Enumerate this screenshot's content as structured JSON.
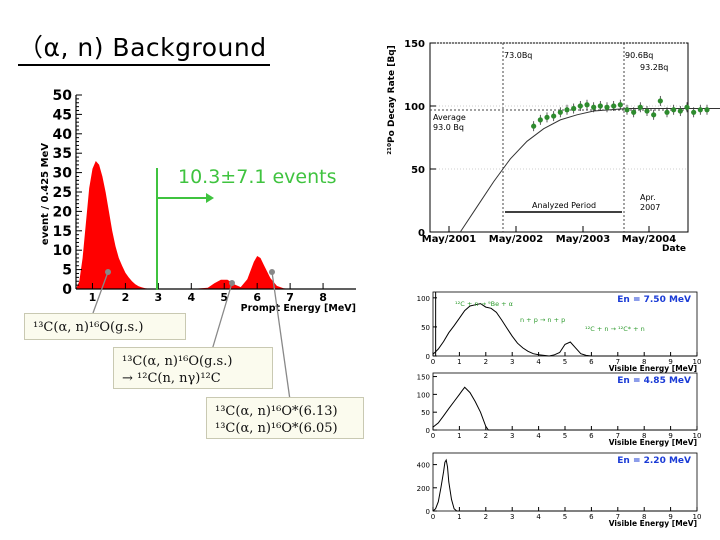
{
  "slide": {
    "title": "（α, n) Background"
  },
  "chart_data": [
    {
      "type": "area",
      "name": "alpha_n_spectrum",
      "xlabel": "Prompt Energy [MeV]",
      "ylabel": "event / 0.425 MeV",
      "xlim": [
        0.5,
        9
      ],
      "ylim": [
        0,
        50
      ],
      "xticks": [
        "1",
        "2",
        "3",
        "4",
        "5",
        "6",
        "7",
        "8"
      ],
      "yticks": [
        "0",
        "5",
        "10",
        "15",
        "20",
        "25",
        "30",
        "35",
        "40",
        "45",
        "50"
      ],
      "fill_color": "#ff0000",
      "x": [
        0.5,
        0.6,
        0.7,
        0.8,
        0.9,
        1.0,
        1.1,
        1.2,
        1.3,
        1.4,
        1.5,
        1.6,
        1.7,
        1.8,
        1.9,
        2.0,
        2.1,
        2.2,
        2.3,
        2.4,
        2.5,
        2.6,
        2.7,
        2.8,
        3.0,
        3.5,
        4.0,
        4.5,
        4.7,
        4.9,
        5.1,
        5.3,
        5.5,
        5.7,
        5.9,
        6.0,
        6.1,
        6.2,
        6.4,
        6.6,
        6.8,
        7.0,
        9.0
      ],
      "y": [
        0,
        2,
        8,
        17,
        26,
        31,
        33,
        32,
        29,
        25,
        20,
        15,
        11,
        8,
        6,
        4.2,
        3,
        2,
        1.2,
        0.7,
        0.4,
        0.2,
        0.1,
        0,
        0,
        0,
        0,
        0.3,
        1.5,
        2.4,
        2.4,
        1.2,
        0.5,
        2.5,
        7,
        8.5,
        8,
        6.2,
        2.8,
        0.8,
        0.2,
        0,
        0
      ],
      "annotation": {
        "text": "10.3±7.1 events",
        "color": "#3fc33f"
      }
    },
    {
      "type": "scatter",
      "name": "po210_decay_rate",
      "ylabel": "²¹⁰Po Decay Rate [Bq]",
      "xlabel": "Date",
      "xticks": [
        "May/2001",
        "May/2002",
        "May/2003",
        "May/2004"
      ],
      "yticks": [
        "0",
        "50",
        "100",
        "150"
      ],
      "ylim": [
        0,
        150
      ],
      "labels": {
        "start_rate": "73.0Bq",
        "end_rate": "90.6Bq",
        "end_rate2": "93.2Bq",
        "average": "Average",
        "average_value": "93.0 Bq",
        "period": "Analyzed Period",
        "end_month": "Apr.",
        "end_year": "2007"
      },
      "point_color": "#2e8b2e",
      "x": [
        2002.6,
        2002.7,
        2002.8,
        2002.9,
        2003.0,
        2003.1,
        2003.2,
        2003.3,
        2003.4,
        2003.5,
        2003.6,
        2003.7,
        2003.8,
        2003.9,
        2004.0,
        2004.1,
        2004.2,
        2004.3,
        2004.4,
        2004.5,
        2004.6,
        2004.7,
        2004.8,
        2004.9,
        2005.0,
        2005.1,
        2005.2
      ],
      "y": [
        84,
        89,
        91,
        92,
        95,
        97,
        98,
        100,
        101,
        99,
        100,
        99,
        100,
        101,
        97,
        95,
        99,
        96,
        93,
        104,
        95,
        97,
        96,
        99,
        95,
        97,
        97
      ],
      "fit_curve_x": [
        2001.5,
        2001.75,
        2002.0,
        2002.25,
        2002.5,
        2002.75,
        2003.0,
        2003.25,
        2003.5,
        2004.0,
        2004.5,
        2005.0,
        2005.5
      ],
      "fit_curve_y": [
        0,
        20,
        40,
        58,
        72,
        82,
        89,
        93,
        96,
        98,
        98,
        98,
        98
      ]
    },
    {
      "type": "line",
      "name": "visible_energy_7_50",
      "xlabel": "Visible Energy [MeV]",
      "xticks": [
        "0",
        "1",
        "2",
        "3",
        "4",
        "5",
        "6",
        "7",
        "8",
        "9",
        "10"
      ],
      "yticks": [
        "0",
        "50",
        "100"
      ],
      "xlim": [
        0,
        10
      ],
      "ylim": [
        0,
        110
      ],
      "legend": "En = 7.50 MeV",
      "labels": {
        "reaction1": "¹²C + n → ⁹Be + α",
        "reaction2": "n + p → n + p",
        "reaction3": "¹²C + n → ¹²C* + n"
      },
      "x": [
        0.0,
        0.2,
        0.4,
        0.6,
        0.8,
        1.0,
        1.2,
        1.4,
        1.6,
        1.8,
        2.0,
        2.2,
        2.4,
        2.6,
        2.8,
        3.0,
        3.2,
        3.4,
        3.6,
        3.8,
        4.0,
        4.2,
        4.4,
        4.6,
        4.8,
        5.0,
        5.2,
        5.4,
        5.6,
        5.8,
        6.0,
        10.0
      ],
      "y": [
        3,
        12,
        25,
        40,
        52,
        65,
        78,
        86,
        88,
        90,
        84,
        82,
        75,
        62,
        48,
        34,
        22,
        14,
        8,
        4,
        2,
        1,
        0,
        2,
        6,
        20,
        24,
        14,
        4,
        1,
        0,
        0
      ],
      "spike": {
        "x": 0.1,
        "y": 110
      }
    },
    {
      "type": "line",
      "name": "visible_energy_4_85",
      "xlabel": "Visible Energy [MeV]",
      "xticks": [
        "0",
        "1",
        "2",
        "3",
        "4",
        "5",
        "6",
        "7",
        "8",
        "9",
        "10"
      ],
      "yticks": [
        "0",
        "50",
        "100",
        "150"
      ],
      "xlim": [
        0,
        10
      ],
      "ylim": [
        0,
        160
      ],
      "legend": "En = 4.85 MeV",
      "x": [
        0.0,
        0.2,
        0.4,
        0.6,
        0.8,
        1.0,
        1.1,
        1.2,
        1.4,
        1.6,
        1.8,
        2.0,
        2.1,
        10.0
      ],
      "y": [
        8,
        20,
        40,
        60,
        80,
        100,
        110,
        120,
        105,
        80,
        50,
        10,
        0,
        0
      ]
    },
    {
      "type": "line",
      "name": "visible_energy_2_20",
      "xlabel": "Visible Energy [MeV]",
      "xticks": [
        "0",
        "1",
        "2",
        "3",
        "4",
        "5",
        "6",
        "7",
        "8",
        "9",
        "10"
      ],
      "yticks": [
        "0",
        "200",
        "400"
      ],
      "xlim": [
        0,
        10
      ],
      "ylim": [
        0,
        500
      ],
      "legend": "En = 2.20 MeV",
      "x": [
        0.0,
        0.1,
        0.2,
        0.3,
        0.4,
        0.45,
        0.5,
        0.55,
        0.6,
        0.7,
        0.8,
        0.9,
        10.0
      ],
      "y": [
        0,
        20,
        80,
        200,
        340,
        420,
        440,
        380,
        250,
        100,
        20,
        0,
        0
      ]
    }
  ],
  "callouts": [
    {
      "lines": [
        "¹³C(α, n)¹⁶O(g.s.)"
      ]
    },
    {
      "lines": [
        "¹³C(α, n)¹⁶O(g.s.)",
        "  → ¹²C(n, nγ)¹²C"
      ]
    },
    {
      "lines": [
        "¹³C(α, n)¹⁶O*(6.13)",
        "¹³C(α, n)¹⁶O*(6.05)"
      ]
    }
  ]
}
